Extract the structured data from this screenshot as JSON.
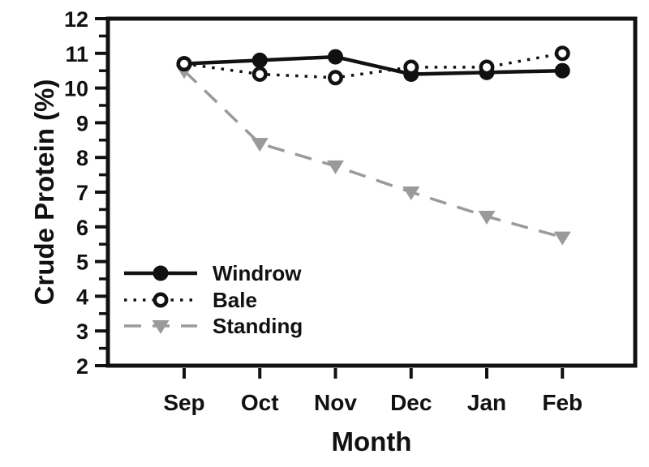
{
  "figure": {
    "background": "#ffffff"
  },
  "chart_data": {
    "type": "line",
    "title": "",
    "xlabel": "Month",
    "ylabel": "Crude Protein (%)",
    "categories": [
      "Sep",
      "Oct",
      "Nov",
      "Dec",
      "Jan",
      "Feb"
    ],
    "ylim": [
      2,
      12
    ],
    "y_major_step": 1,
    "y_minor_step": 0.5,
    "y_tick_labels": [
      "2",
      "3",
      "4",
      "5",
      "6",
      "7",
      "8",
      "9",
      "10",
      "11",
      "12"
    ],
    "grid": false,
    "legend_position": "inside-lower-left",
    "colors": {
      "black": "#111111",
      "gray": "#9a9a9a",
      "open_marker_fill": "#ffffff"
    },
    "series": [
      {
        "name": "Windrow",
        "values": [
          10.7,
          10.8,
          10.9,
          10.4,
          10.45,
          10.5
        ],
        "color": "#111111",
        "line_style": "solid",
        "marker": "filled-circle"
      },
      {
        "name": "Bale",
        "values": [
          10.7,
          10.4,
          10.3,
          10.6,
          10.6,
          11.0
        ],
        "color": "#111111",
        "line_style": "dotted",
        "marker": "open-circle"
      },
      {
        "name": "Standing",
        "values": [
          10.5,
          8.4,
          7.75,
          7.0,
          6.3,
          5.7
        ],
        "color": "#9a9a9a",
        "line_style": "dashed",
        "marker": "filled-triangle-down"
      }
    ]
  }
}
